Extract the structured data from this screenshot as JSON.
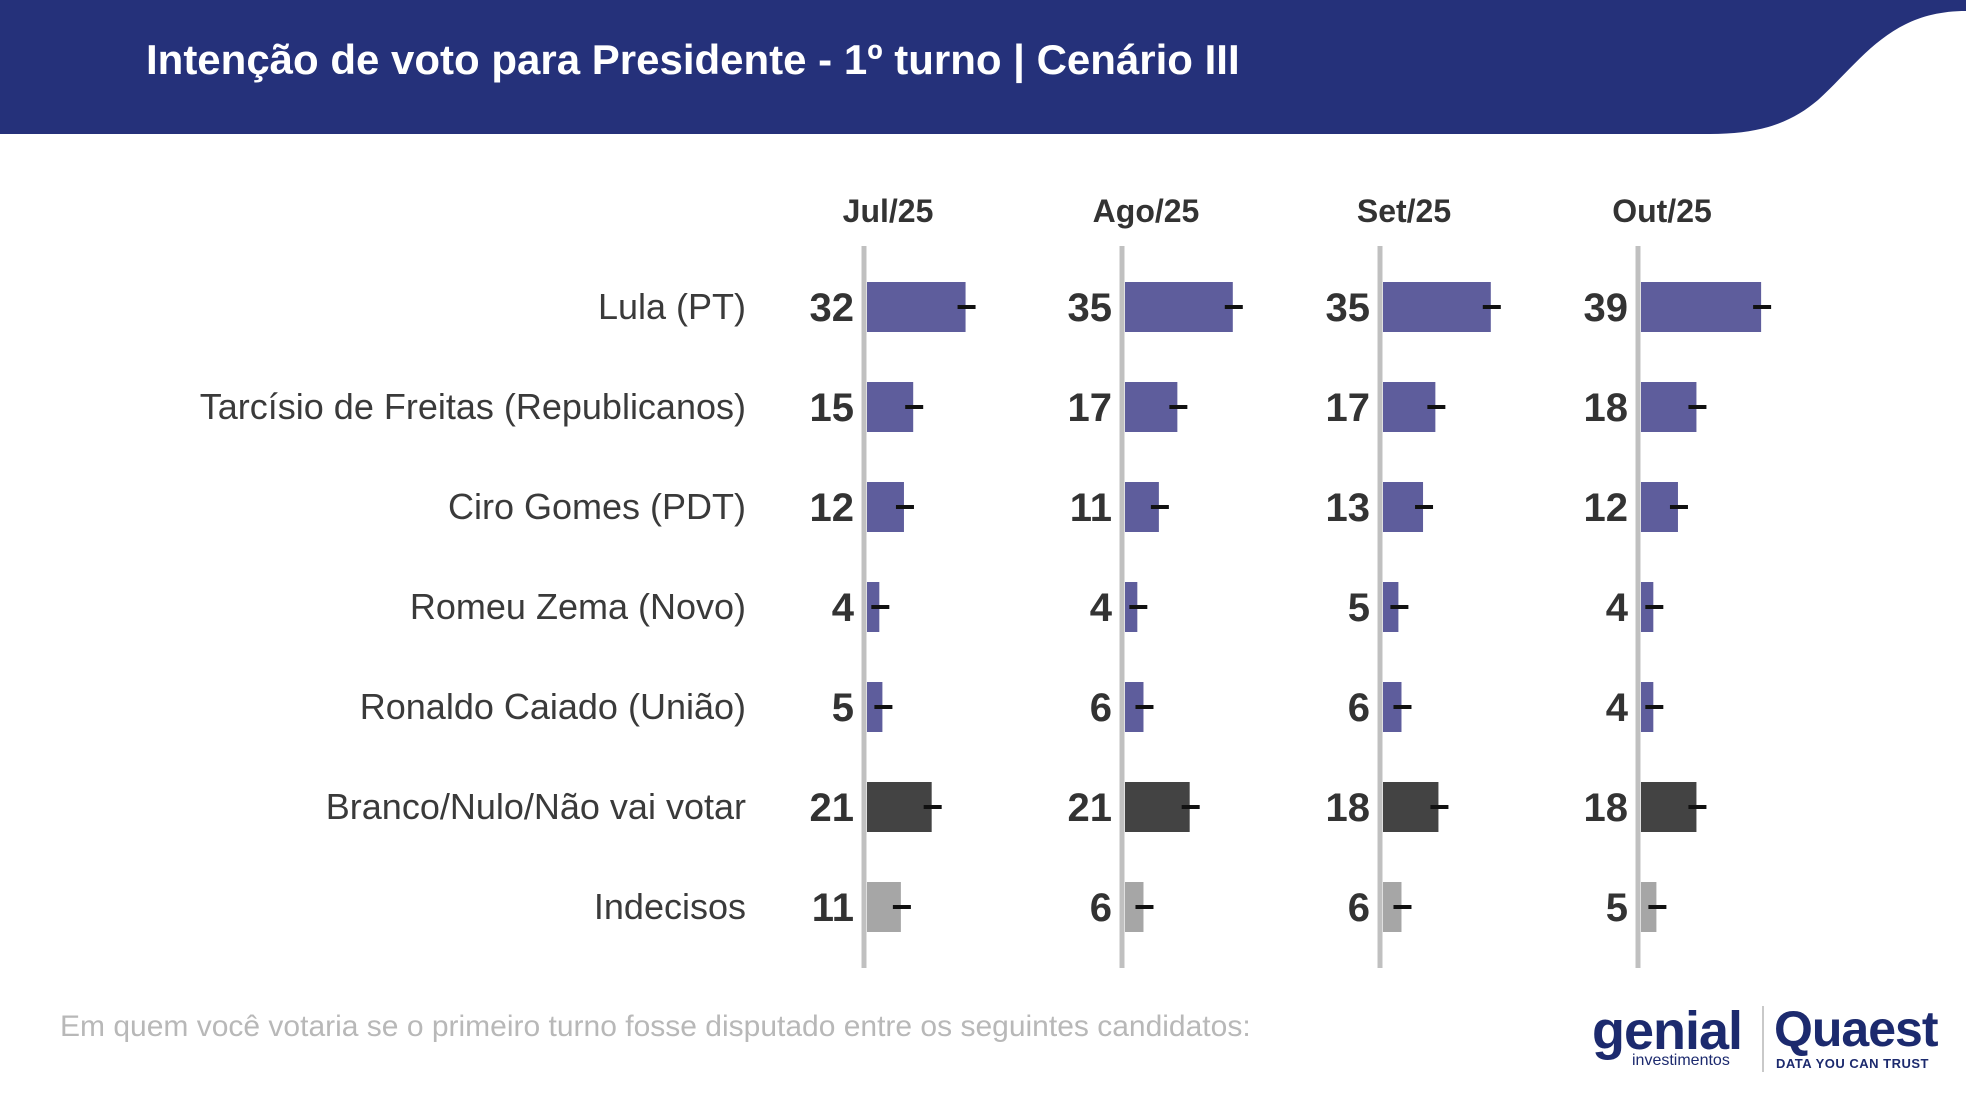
{
  "header": {
    "title": "Intenção de voto para Presidente - 1º turno | Cenário III"
  },
  "footnote": "Em quem você votaria se o primeiro turno fosse disputado entre os seguintes candidatos:",
  "logos": {
    "genial": "genial",
    "genial_sub": "investimentos",
    "quaest": "Quaest",
    "quaest_tagline": "DATA YOU CAN TRUST"
  },
  "colors": {
    "header": "#25317a",
    "candidate": "#5e5d9c",
    "blank": "#434343",
    "undecided": "#a6a6a6",
    "axis": "#c0c0c0",
    "value_text": "#333333",
    "label_text": "#3a3a3a",
    "error_mark": "#111111"
  },
  "chart_data": {
    "type": "bar",
    "orientation": "horizontal",
    "categories": [
      "Lula (PT)",
      "Tarcísio de Freitas (Republicanos)",
      "Ciro Gomes (PDT)",
      "Romeu Zema (Novo)",
      "Ronaldo Caiado (União)",
      "Branco/Nulo/Não vai votar",
      "Indecisos"
    ],
    "category_groups": [
      "candidate",
      "candidate",
      "candidate",
      "candidate",
      "candidate",
      "blank",
      "undecided"
    ],
    "series": [
      {
        "name": "Jul/25",
        "values": [
          32,
          15,
          12,
          4,
          5,
          21,
          11
        ]
      },
      {
        "name": "Ago/25",
        "values": [
          35,
          17,
          11,
          4,
          6,
          21,
          6
        ]
      },
      {
        "name": "Set/25",
        "values": [
          35,
          17,
          13,
          5,
          6,
          18,
          6
        ]
      },
      {
        "name": "Out/25",
        "values": [
          39,
          18,
          12,
          4,
          4,
          18,
          5
        ]
      }
    ],
    "xlim": [
      0,
      45
    ],
    "error_marks": true,
    "grid": false,
    "legend": "none"
  }
}
